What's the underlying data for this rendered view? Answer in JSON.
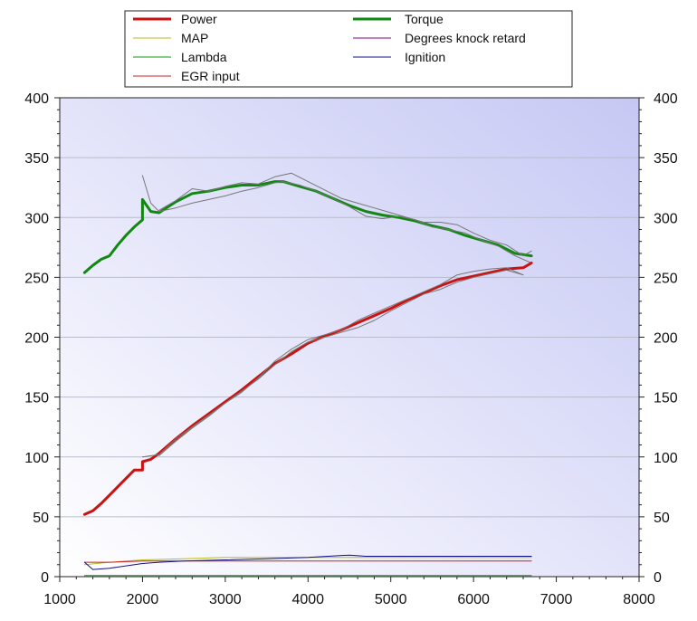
{
  "chart_data": {
    "type": "line",
    "xlim": [
      1000,
      8000
    ],
    "ylim": [
      0,
      400
    ],
    "x_ticks": [
      "1000",
      "2000",
      "3000",
      "4000",
      "5000",
      "6000",
      "7000",
      "8000"
    ],
    "y_ticks": [
      "0",
      "50",
      "100",
      "150",
      "200",
      "250",
      "300",
      "350",
      "400"
    ],
    "y2_ticks": [
      "0",
      "50",
      "100",
      "150",
      "200",
      "250",
      "300",
      "350",
      "400"
    ],
    "grid": true,
    "legend_position": "top",
    "legend": [
      {
        "label": "Power",
        "color": "#cc1111",
        "width": 3
      },
      {
        "label": "Torque",
        "color": "#118811",
        "width": 3
      },
      {
        "label": "MAP",
        "color": "#bbbb22",
        "width": 1
      },
      {
        "label": "Degrees knock retard",
        "color": "#880088",
        "width": 1
      },
      {
        "label": "Lambda",
        "color": "#119911",
        "width": 1
      },
      {
        "label": "Ignition",
        "color": "#111188",
        "width": 1
      },
      {
        "label": "EGR input",
        "color": "#cc2222",
        "width": 1
      }
    ],
    "series": [
      {
        "name": "Torque",
        "color": "#118811",
        "width": 3,
        "x": [
          1300,
          1400,
          1500,
          1600,
          1700,
          1800,
          1900,
          2000,
          2000,
          2100,
          2200,
          2400,
          2600,
          2800,
          3000,
          3200,
          3400,
          3600,
          3700,
          3900,
          4100,
          4300,
          4500,
          4700,
          4900,
          5100,
          5300,
          5500,
          5700,
          5900,
          6100,
          6300,
          6500,
          6700
        ],
        "y": [
          254,
          260,
          265,
          268,
          277,
          285,
          292,
          298,
          315,
          305,
          304,
          313,
          320,
          322,
          325,
          327,
          327,
          330,
          330,
          326,
          322,
          316,
          310,
          305,
          302,
          300,
          297,
          293,
          290,
          285,
          281,
          277,
          270,
          268
        ]
      },
      {
        "name": "Torque (overlay)",
        "color": "#777777",
        "width": 1,
        "x": [
          2000,
          2100,
          2200,
          2400,
          2600,
          2800,
          3000,
          3200,
          3400,
          3600,
          3700,
          3900,
          4100,
          4300,
          4500,
          4700,
          4900,
          5100,
          5300,
          5500,
          5700,
          5900,
          6100,
          6300,
          6500,
          6700
        ],
        "y": [
          335,
          312,
          305,
          308,
          312,
          315,
          318,
          322,
          325,
          329,
          330,
          327,
          322,
          316,
          309,
          301,
          299,
          301,
          298,
          292,
          290,
          287,
          281,
          276,
          268,
          262
        ]
      },
      {
        "name": "Torque (overlay 2)",
        "color": "#777777",
        "width": 1,
        "x": [
          2200,
          2400,
          2600,
          2800,
          3000,
          3200,
          3400,
          3600,
          3800,
          4000,
          4200,
          4400,
          4600,
          4800,
          5000,
          5200,
          5400,
          5600,
          5800,
          6000,
          6200,
          6400,
          6600,
          6700
        ],
        "y": [
          306,
          314,
          324,
          322,
          326,
          329,
          328,
          334,
          337,
          330,
          323,
          316,
          312,
          308,
          304,
          300,
          296,
          296,
          294,
          287,
          281,
          277,
          268,
          272
        ]
      },
      {
        "name": "Power",
        "color": "#cc1111",
        "width": 3,
        "x": [
          1300,
          1400,
          1500,
          1600,
          1700,
          1800,
          1900,
          2000,
          2000,
          2100,
          2200,
          2400,
          2600,
          2800,
          3000,
          3200,
          3400,
          3600,
          3800,
          4000,
          4200,
          4400,
          4600,
          4800,
          5000,
          5200,
          5400,
          5600,
          5800,
          6000,
          6200,
          6400,
          6600,
          6700
        ],
        "y": [
          52,
          55,
          61,
          68,
          75,
          82,
          89,
          89,
          96,
          98,
          103,
          115,
          126,
          136,
          146,
          156,
          167,
          178,
          186,
          195,
          201,
          206,
          212,
          218,
          224,
          231,
          237,
          243,
          248,
          251,
          254,
          257,
          258,
          262
        ]
      },
      {
        "name": "Power (overlay)",
        "color": "#777777",
        "width": 1,
        "x": [
          2000,
          2200,
          2400,
          2600,
          2800,
          3000,
          3200,
          3400,
          3600,
          3800,
          4000,
          4200,
          4400,
          4600,
          4800,
          5000,
          5200,
          5400,
          5600,
          5800,
          6000,
          6200,
          6400,
          6600
        ],
        "y": [
          100,
          102,
          115,
          125,
          135,
          145,
          155,
          165,
          177,
          188,
          196,
          200,
          204,
          208,
          214,
          222,
          229,
          236,
          240,
          246,
          250,
          253,
          256,
          252
        ]
      },
      {
        "name": "Power (overlay 2)",
        "color": "#777777",
        "width": 1,
        "x": [
          2200,
          2400,
          2600,
          2800,
          3000,
          3200,
          3400,
          3600,
          3800,
          4000,
          4200,
          4400,
          4600,
          4800,
          5000,
          5200,
          5400,
          5600,
          5800,
          6000,
          6200,
          6400,
          6600
        ],
        "y": [
          101,
          113,
          124,
          134,
          145,
          154,
          166,
          180,
          190,
          198,
          202,
          206,
          214,
          220,
          226,
          232,
          238,
          244,
          252,
          255,
          257,
          258,
          252
        ]
      },
      {
        "name": "MAP",
        "color": "#bbbb22",
        "width": 1,
        "x": [
          1300,
          1600,
          2000,
          2500,
          3000,
          3500,
          4000,
          4500,
          5000,
          5500,
          6000,
          6500,
          6700
        ],
        "y": [
          10,
          12,
          14,
          15,
          16,
          16,
          16,
          16,
          16,
          16,
          16,
          16,
          16
        ]
      },
      {
        "name": "EGR input",
        "color": "#cc2222",
        "width": 1,
        "x": [
          1300,
          1600,
          2000,
          2500,
          3000,
          3500,
          4000,
          4500,
          5000,
          5500,
          6000,
          6500,
          6700
        ],
        "y": [
          12,
          12,
          13,
          13,
          13,
          13,
          13,
          13,
          13,
          13,
          13,
          13,
          13
        ]
      },
      {
        "name": "Lambda",
        "color": "#119911",
        "width": 1,
        "x": [
          1300,
          2000,
          3000,
          4000,
          5000,
          6000,
          6700
        ],
        "y": [
          1,
          1,
          1,
          1,
          1,
          1,
          1
        ]
      },
      {
        "name": "Ignition",
        "color": "#111188",
        "width": 1,
        "x": [
          1300,
          1400,
          1600,
          1800,
          2000,
          2200,
          2500,
          3000,
          3500,
          4000,
          4500,
          4700,
          5000,
          5500,
          6000,
          6500,
          6700
        ],
        "y": [
          12,
          6,
          7,
          9,
          11,
          12,
          13,
          14,
          15,
          16,
          18,
          17,
          17,
          17,
          17,
          17,
          17
        ]
      },
      {
        "name": "Degrees knock retard",
        "color": "#880088",
        "width": 1,
        "x": [
          1300,
          2000,
          3000,
          4000,
          5000,
          6000,
          6700
        ],
        "y": [
          0,
          0,
          0,
          0,
          0,
          0,
          0
        ]
      }
    ]
  }
}
